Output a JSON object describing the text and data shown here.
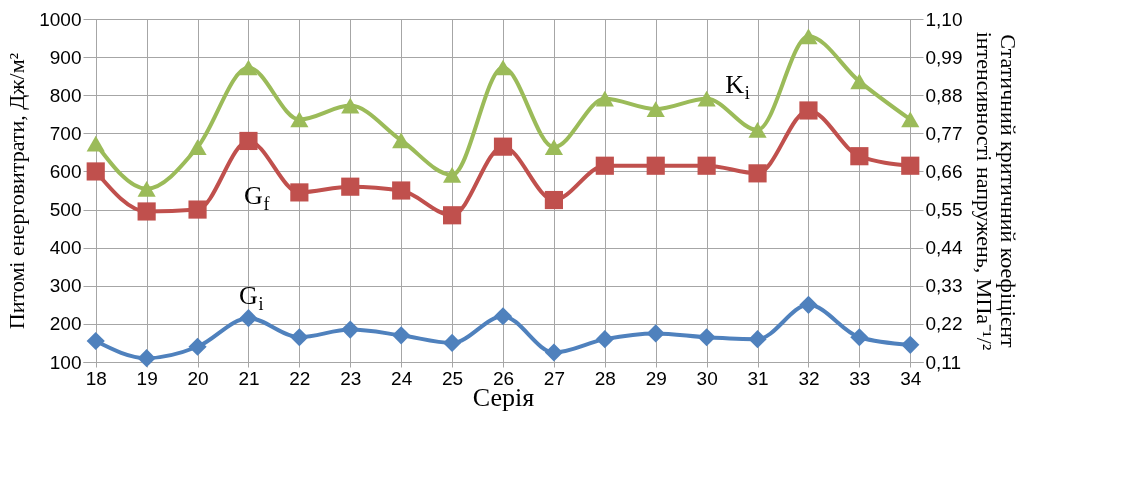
{
  "chart_data": {
    "type": "line",
    "xlabel": "Серія",
    "ylabel": "Питомі енерговитрати, Дж/м²",
    "y2label": "Статичний критичний коефіцієнт інтенсивності напружень, МПа⁻¹/²",
    "categories": [
      "18",
      "19",
      "20",
      "21",
      "22",
      "23",
      "24",
      "25",
      "26",
      "27",
      "28",
      "29",
      "30",
      "31",
      "32",
      "33",
      "34"
    ],
    "series": [
      {
        "name": "G$_{i}$",
        "color": "#4f81bd",
        "marker": "diamond",
        "values": [
          155,
          110,
          140,
          215,
          165,
          185,
          170,
          150,
          220,
          125,
          160,
          175,
          165,
          160,
          250,
          165,
          145
        ]
      },
      {
        "name": "G$_{f}$",
        "color": "#c0504d",
        "marker": "square",
        "values": [
          600,
          495,
          500,
          680,
          545,
          560,
          550,
          485,
          665,
          525,
          615,
          615,
          615,
          595,
          760,
          640,
          615
        ]
      },
      {
        "name": "K$_{i}$",
        "color": "#9bbb59",
        "marker": "triangle",
        "axis": "y2",
        "values": [
          0.74,
          0.61,
          0.73,
          0.96,
          0.81,
          0.85,
          0.75,
          0.65,
          0.96,
          0.73,
          0.87,
          0.84,
          0.87,
          0.78,
          1.05,
          0.92,
          0.81
        ]
      }
    ],
    "ylim": [
      100,
      1000
    ],
    "yticks": [
      100,
      200,
      300,
      400,
      500,
      600,
      700,
      800,
      900,
      1000
    ],
    "y2lim": [
      0.11,
      1.1
    ],
    "y2ticks": [
      {
        "value": 0.11,
        "label": "0,11"
      },
      {
        "value": 0.22,
        "label": "0,22"
      },
      {
        "value": 0.33,
        "label": "0,33"
      },
      {
        "value": 0.44,
        "label": "0,44"
      },
      {
        "value": 0.55,
        "label": "0,55"
      },
      {
        "value": 0.66,
        "label": "0,66"
      },
      {
        "value": 0.77,
        "label": "0,77"
      },
      {
        "value": 0.88,
        "label": "0,88"
      },
      {
        "value": 0.99,
        "label": "0,99"
      },
      {
        "value": 1.1,
        "label": "1,10"
      }
    ],
    "grid": true
  }
}
